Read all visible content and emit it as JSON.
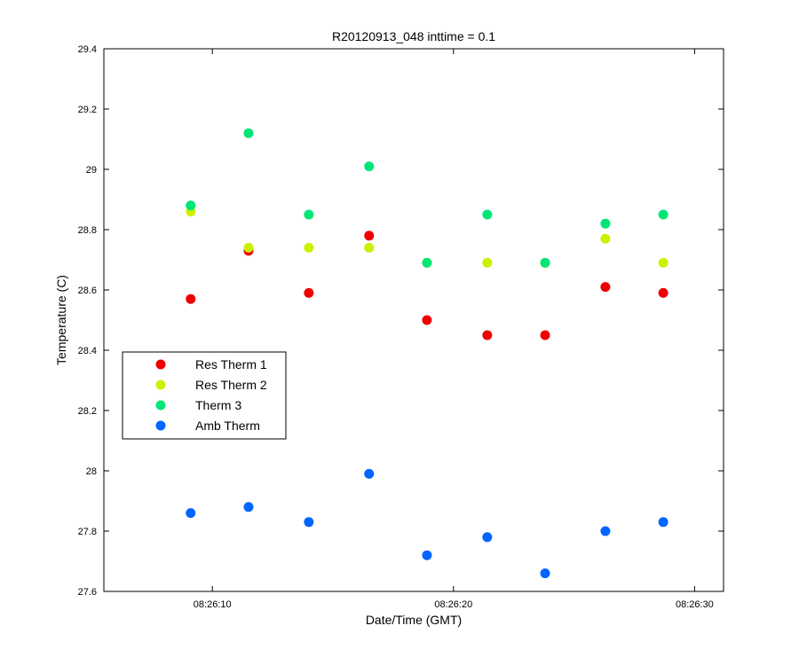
{
  "chart_data": {
    "type": "scatter",
    "title": "R20120913_048 inttime = 0.1",
    "xlabel": "Date/Time (GMT)",
    "ylabel": "Temperature (C)",
    "x_unit": "time (GMT, HH:MM:SS on 2012-09-13)",
    "xlim": [
      "08:26:05.5",
      "08:26:31.2"
    ],
    "ylim": [
      27.6,
      29.4
    ],
    "xticks": [
      "08:26:10",
      "08:26:20",
      "08:26:30"
    ],
    "yticks": [
      "27.6",
      "27.8",
      "28",
      "28.2",
      "28.4",
      "28.6",
      "28.8",
      "29",
      "29.2",
      "29.4"
    ],
    "x": [
      "08:26:09.1",
      "08:26:11.5",
      "08:26:14.0",
      "08:26:16.5",
      "08:26:18.9",
      "08:26:21.4",
      "08:26:23.8",
      "08:26:26.3",
      "08:26:28.7"
    ],
    "series": [
      {
        "name": "Res Therm 1",
        "color": "#ee0000",
        "values": [
          28.57,
          28.73,
          28.59,
          28.78,
          28.5,
          28.45,
          28.45,
          28.61,
          28.59
        ]
      },
      {
        "name": "Res Therm 2",
        "color": "#ccf000",
        "values": [
          28.86,
          28.74,
          28.74,
          28.74,
          28.69,
          28.69,
          28.69,
          28.77,
          28.69
        ]
      },
      {
        "name": "Therm 3",
        "color": "#00e676",
        "values": [
          28.88,
          29.12,
          28.85,
          29.01,
          28.69,
          28.85,
          28.69,
          28.82,
          28.85
        ]
      },
      {
        "name": "Amb Therm",
        "color": "#0066ff",
        "values": [
          27.86,
          27.88,
          27.83,
          27.99,
          27.72,
          27.78,
          27.66,
          27.8,
          27.83
        ]
      }
    ],
    "legend_position": "left",
    "grid": false
  }
}
